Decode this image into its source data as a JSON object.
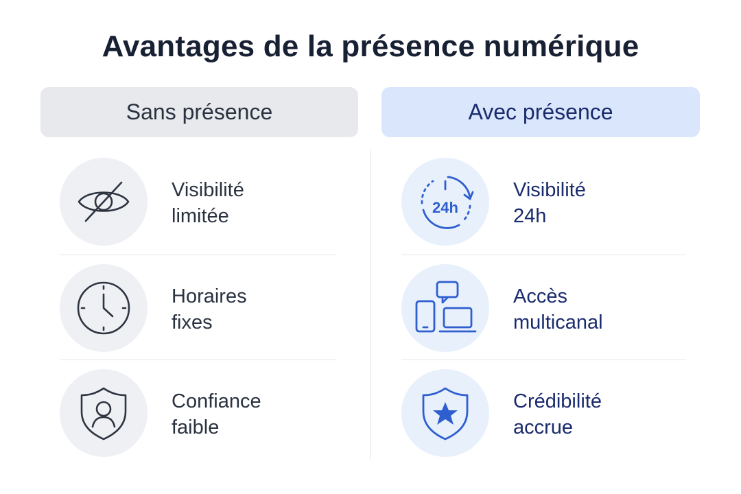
{
  "title": "Avantages de la présence numérique",
  "columns": [
    {
      "header": "Sans présence",
      "items": [
        {
          "icon": "eye-slash-icon",
          "label": "Visibilité\nlimitée"
        },
        {
          "icon": "clock-icon",
          "label": "Horaires\nfixes"
        },
        {
          "icon": "shield-user-icon",
          "label": "Confiance\nfaible"
        }
      ]
    },
    {
      "header": "Avec présence",
      "items": [
        {
          "icon": "clock-24h-icon",
          "label": "Visibilité\n24h"
        },
        {
          "icon": "multichannel-devices-icon",
          "label": "Accès\nmulticanal"
        },
        {
          "icon": "shield-star-icon",
          "label": "Crédibilité\naccrue"
        }
      ]
    }
  ],
  "colors": {
    "left_header_bg": "#e7e9ed",
    "right_header_bg": "#d9e6fb",
    "left_text": "#2a3240",
    "right_text": "#1a2b6d",
    "right_icon": "#2f5fcf"
  }
}
